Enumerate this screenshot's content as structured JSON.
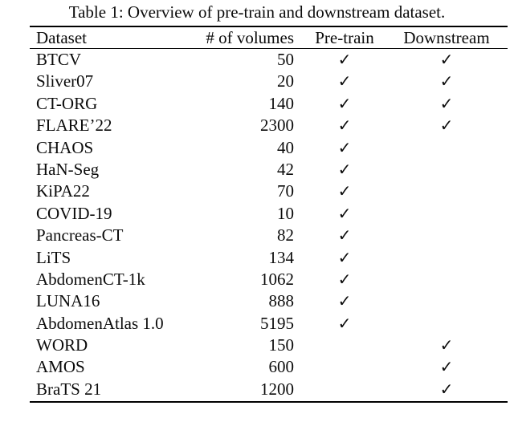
{
  "caption": "Table 1: Overview of pre-train and downstream dataset.",
  "table": {
    "columns": [
      "Dataset",
      "# of volumes",
      "Pre-train",
      "Downstream"
    ],
    "check_glyph": "✓",
    "text_color": "#0b0b0b",
    "rule_color": "#000000",
    "rows": [
      {
        "dataset": "BTCV",
        "volumes": "50",
        "pretrain": true,
        "downstream": true
      },
      {
        "dataset": "Sliver07",
        "volumes": "20",
        "pretrain": true,
        "downstream": true
      },
      {
        "dataset": "CT-ORG",
        "volumes": "140",
        "pretrain": true,
        "downstream": true
      },
      {
        "dataset": "FLARE’22",
        "volumes": "2300",
        "pretrain": true,
        "downstream": true
      },
      {
        "dataset": "CHAOS",
        "volumes": "40",
        "pretrain": true,
        "downstream": false
      },
      {
        "dataset": "HaN-Seg",
        "volumes": "42",
        "pretrain": true,
        "downstream": false
      },
      {
        "dataset": "KiPA22",
        "volumes": "70",
        "pretrain": true,
        "downstream": false
      },
      {
        "dataset": "COVID-19",
        "volumes": "10",
        "pretrain": true,
        "downstream": false
      },
      {
        "dataset": "Pancreas-CT",
        "volumes": "82",
        "pretrain": true,
        "downstream": false
      },
      {
        "dataset": "LiTS",
        "volumes": "134",
        "pretrain": true,
        "downstream": false
      },
      {
        "dataset": "AbdomenCT-1k",
        "volumes": "1062",
        "pretrain": true,
        "downstream": false
      },
      {
        "dataset": "LUNA16",
        "volumes": "888",
        "pretrain": true,
        "downstream": false
      },
      {
        "dataset": "AbdomenAtlas 1.0",
        "volumes": "5195",
        "pretrain": true,
        "downstream": false
      },
      {
        "dataset": "WORD",
        "volumes": "150",
        "pretrain": false,
        "downstream": true
      },
      {
        "dataset": "AMOS",
        "volumes": "600",
        "pretrain": false,
        "downstream": true
      },
      {
        "dataset": "BraTS 21",
        "volumes": "1200",
        "pretrain": false,
        "downstream": true
      }
    ]
  }
}
